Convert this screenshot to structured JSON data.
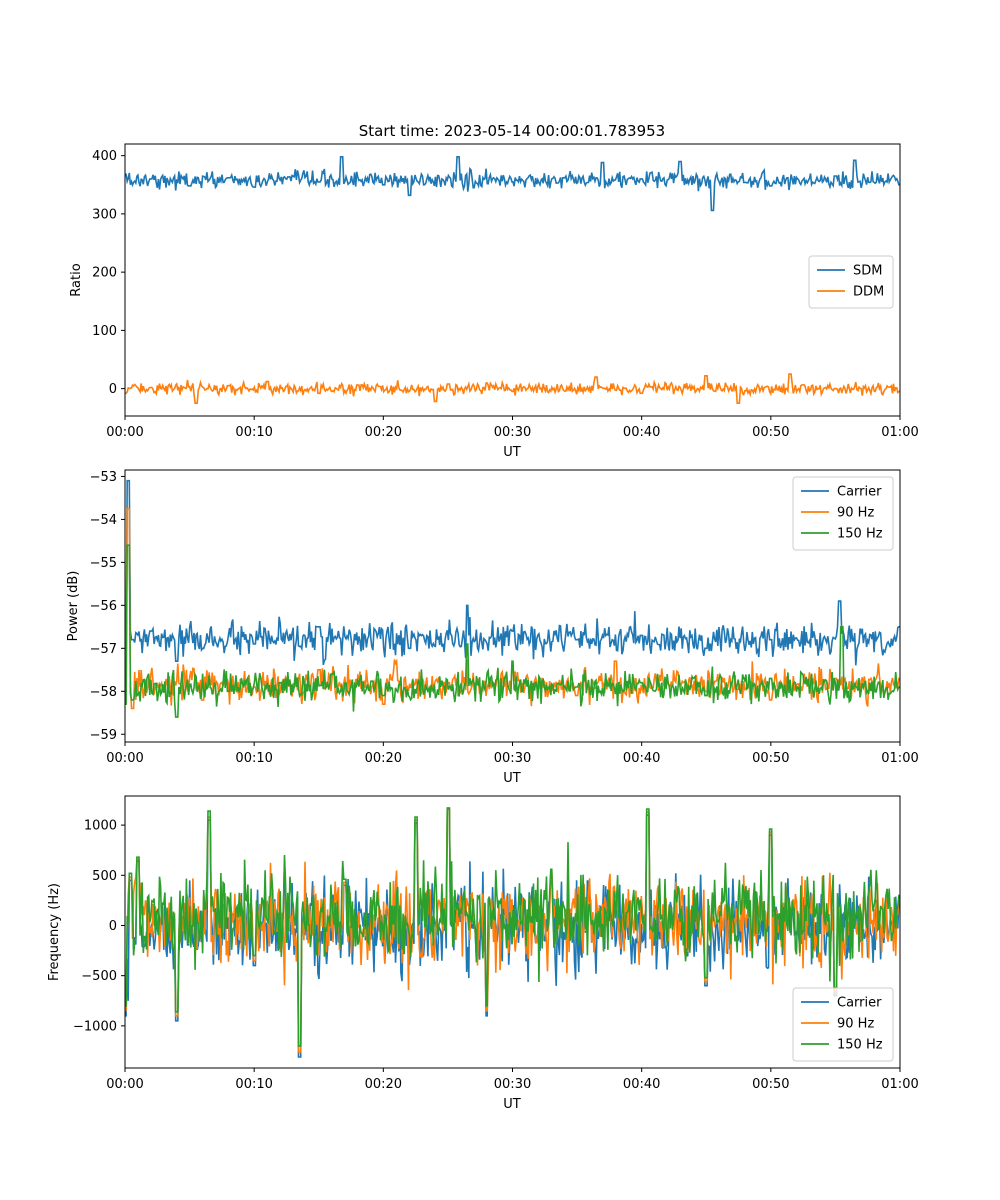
{
  "title": "Start time: 2023-05-14 00:00:01.783953",
  "chart_data": [
    {
      "type": "line",
      "xlabel": "UT",
      "ylabel": "Ratio",
      "x_range_minutes": [
        0,
        60
      ],
      "x_ticks": [
        "00:00",
        "00:10",
        "00:20",
        "00:30",
        "00:40",
        "00:50",
        "01:00"
      ],
      "ylim": [
        -47,
        420
      ],
      "y_ticks": [
        0,
        100,
        200,
        300,
        400
      ],
      "y_tick_labels": [
        "0",
        "100",
        "200",
        "300",
        "400"
      ],
      "legend_position": "center-right",
      "series": [
        {
          "name": "SDM",
          "color": "#1f77b4",
          "mean": 358,
          "noise": 12,
          "points": [
            [
              0,
              368
            ],
            [
              2,
              360
            ],
            [
              5,
              348
            ],
            [
              8,
              362
            ],
            [
              10,
              346
            ],
            [
              15,
              355
            ],
            [
              16.8,
              398
            ],
            [
              20,
              350
            ],
            [
              22,
              332
            ],
            [
              25.8,
              398
            ],
            [
              27,
              345
            ],
            [
              30,
              355
            ],
            [
              34,
              362
            ],
            [
              37,
              388
            ],
            [
              40,
              360
            ],
            [
              43,
              390
            ],
            [
              45.5,
              306
            ],
            [
              48,
              354
            ],
            [
              50,
              348
            ],
            [
              55,
              365
            ],
            [
              56.5,
              392
            ],
            [
              60,
              350
            ]
          ]
        },
        {
          "name": "DDM",
          "color": "#ff7f0e",
          "mean": 0,
          "noise": 8,
          "points": [
            [
              0,
              -8
            ],
            [
              2,
              2
            ],
            [
              5.5,
              -25
            ],
            [
              8,
              5
            ],
            [
              11,
              12
            ],
            [
              15,
              -8
            ],
            [
              18,
              6
            ],
            [
              24,
              -22
            ],
            [
              25,
              8
            ],
            [
              30,
              -5
            ],
            [
              36.5,
              20
            ],
            [
              40,
              -8
            ],
            [
              45,
              22
            ],
            [
              47.5,
              -25
            ],
            [
              51.5,
              25
            ],
            [
              55,
              0
            ],
            [
              60,
              -5
            ]
          ]
        }
      ]
    },
    {
      "type": "line",
      "xlabel": "UT",
      "ylabel": "Power (dB)",
      "x_range_minutes": [
        0,
        60
      ],
      "x_ticks": [
        "00:00",
        "00:10",
        "00:20",
        "00:30",
        "00:40",
        "00:50",
        "01:00"
      ],
      "ylim": [
        -59.18,
        -52.85
      ],
      "y_ticks": [
        -59,
        -58,
        -57,
        -56,
        -55,
        -54,
        -53
      ],
      "y_tick_labels": [
        "−59",
        "−58",
        "−57",
        "−56",
        "−55",
        "−54",
        "−53"
      ],
      "legend_position": "top-right",
      "series": [
        {
          "name": "Carrier",
          "color": "#1f77b4",
          "mean": -56.8,
          "noise": 0.3,
          "points": [
            [
              0,
              -57.0
            ],
            [
              0.25,
              -53.1
            ],
            [
              0.6,
              -56.8
            ],
            [
              2,
              -56.6
            ],
            [
              4,
              -57.3
            ],
            [
              10,
              -56.9
            ],
            [
              15,
              -56.5
            ],
            [
              22,
              -57.0
            ],
            [
              26.5,
              -56.0
            ],
            [
              30,
              -56.6
            ],
            [
              35,
              -56.8
            ],
            [
              40,
              -56.7
            ],
            [
              45,
              -57.0
            ],
            [
              50,
              -56.8
            ],
            [
              55.3,
              -55.9
            ],
            [
              60,
              -56.5
            ]
          ]
        },
        {
          "name": "90 Hz",
          "color": "#ff7f0e",
          "mean": -57.85,
          "noise": 0.3,
          "points": [
            [
              0,
              -58.0
            ],
            [
              0.25,
              -53.75
            ],
            [
              0.6,
              -58.4
            ],
            [
              3,
              -58.0
            ],
            [
              6,
              -58.2
            ],
            [
              10,
              -57.9
            ],
            [
              15,
              -57.5
            ],
            [
              20,
              -58.3
            ],
            [
              25,
              -57.8
            ],
            [
              30,
              -57.4
            ],
            [
              35,
              -58.1
            ],
            [
              38,
              -57.3
            ],
            [
              45,
              -58.0
            ],
            [
              50,
              -58.2
            ],
            [
              55,
              -57.7
            ],
            [
              60,
              -57.7
            ]
          ]
        },
        {
          "name": "150 Hz",
          "color": "#2ca02c",
          "mean": -57.9,
          "noise": 0.3,
          "points": [
            [
              0,
              -58.3
            ],
            [
              0.25,
              -54.6
            ],
            [
              0.6,
              -58.2
            ],
            [
              4,
              -58.6
            ],
            [
              8,
              -58.0
            ],
            [
              12,
              -57.8
            ],
            [
              16,
              -57.6
            ],
            [
              20,
              -58.1
            ],
            [
              26.5,
              -56.9
            ],
            [
              30,
              -57.3
            ],
            [
              35,
              -57.9
            ],
            [
              40,
              -57.8
            ],
            [
              45,
              -58.1
            ],
            [
              50,
              -57.7
            ],
            [
              55.5,
              -56.5
            ],
            [
              60,
              -57.9
            ]
          ]
        }
      ]
    },
    {
      "type": "line",
      "xlabel": "UT",
      "ylabel": "Frequency (Hz)",
      "x_range_minutes": [
        0,
        60
      ],
      "x_ticks": [
        "00:00",
        "00:10",
        "00:20",
        "00:30",
        "00:40",
        "00:50",
        "01:00"
      ],
      "ylim": [
        -1420,
        1290
      ],
      "y_ticks": [
        -1000,
        -500,
        0,
        500,
        1000
      ],
      "y_tick_labels": [
        "−1000",
        "−500",
        "0",
        "500",
        "1000"
      ],
      "legend_position": "bottom-right",
      "series": [
        {
          "name": "Carrier",
          "color": "#1f77b4",
          "mean": -20,
          "noise": 350,
          "points": [
            [
              0,
              -900
            ],
            [
              0.4,
              450
            ],
            [
              1,
              640
            ],
            [
              4,
              -950
            ],
            [
              6.5,
              1050
            ],
            [
              10,
              -400
            ],
            [
              13.5,
              -1310
            ],
            [
              17,
              400
            ],
            [
              22.5,
              1020
            ],
            [
              25,
              1160
            ],
            [
              28,
              -900
            ],
            [
              33,
              500
            ],
            [
              40.5,
              1100
            ],
            [
              45,
              -600
            ],
            [
              50,
              900
            ],
            [
              55,
              -700
            ],
            [
              60,
              250
            ]
          ]
        },
        {
          "name": "90 Hz",
          "color": "#ff7f0e",
          "mean": 40,
          "noise": 350,
          "points": [
            [
              0,
              -850
            ],
            [
              0.4,
              480
            ],
            [
              1,
              660
            ],
            [
              4,
              -900
            ],
            [
              6.5,
              1080
            ],
            [
              10,
              -350
            ],
            [
              13.5,
              -1260
            ],
            [
              17,
              430
            ],
            [
              22.5,
              1050
            ],
            [
              25,
              1170
            ],
            [
              28,
              -850
            ],
            [
              33,
              530
            ],
            [
              40.5,
              1130
            ],
            [
              45,
              -560
            ],
            [
              50,
              930
            ],
            [
              55,
              -660
            ],
            [
              60,
              280
            ]
          ]
        },
        {
          "name": "150 Hz",
          "color": "#2ca02c",
          "mean": 100,
          "noise": 350,
          "points": [
            [
              0,
              -800
            ],
            [
              0.4,
              520
            ],
            [
              1,
              680
            ],
            [
              4,
              -860
            ],
            [
              6.5,
              1140
            ],
            [
              10,
              -300
            ],
            [
              13.5,
              -1200
            ],
            [
              17,
              460
            ],
            [
              22.5,
              1080
            ],
            [
              25,
              1170
            ],
            [
              28,
              -800
            ],
            [
              33,
              560
            ],
            [
              40.5,
              1160
            ],
            [
              45,
              -520
            ],
            [
              50,
              960
            ],
            [
              55,
              -620
            ],
            [
              60,
              300
            ]
          ]
        }
      ]
    }
  ]
}
